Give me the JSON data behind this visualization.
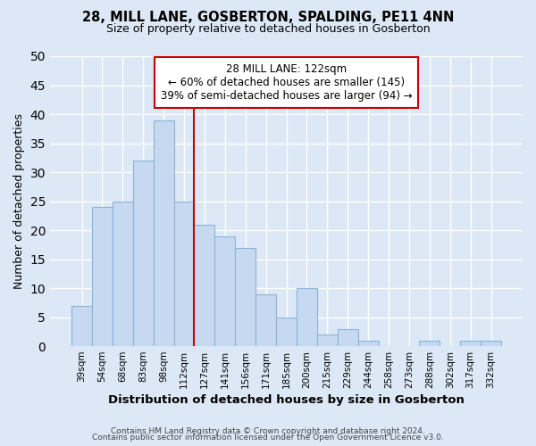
{
  "title": "28, MILL LANE, GOSBERTON, SPALDING, PE11 4NN",
  "subtitle": "Size of property relative to detached houses in Gosberton",
  "xlabel": "Distribution of detached houses by size in Gosberton",
  "ylabel": "Number of detached properties",
  "footer_line1": "Contains HM Land Registry data © Crown copyright and database right 2024.",
  "footer_line2": "Contains public sector information licensed under the Open Government Licence v3.0.",
  "bar_labels": [
    "39sqm",
    "54sqm",
    "68sqm",
    "83sqm",
    "98sqm",
    "112sqm",
    "127sqm",
    "141sqm",
    "156sqm",
    "171sqm",
    "185sqm",
    "200sqm",
    "215sqm",
    "229sqm",
    "244sqm",
    "258sqm",
    "273sqm",
    "288sqm",
    "302sqm",
    "317sqm",
    "332sqm"
  ],
  "bar_values": [
    7,
    24,
    25,
    32,
    39,
    25,
    21,
    19,
    17,
    9,
    5,
    10,
    2,
    3,
    1,
    0,
    0,
    1,
    0,
    1,
    1
  ],
  "bar_color": "#c6d9f0",
  "bar_edge_color": "#8ab4d8",
  "annotation_title": "28 MILL LANE: 122sqm",
  "annotation_line1": "← 60% of detached houses are smaller (145)",
  "annotation_line2": "39% of semi-detached houses are larger (94) →",
  "vline_color": "#cc0000",
  "annotation_box_color": "#ffffff",
  "annotation_box_edge_color": "#cc0000",
  "ylim": [
    0,
    50
  ],
  "yticks": [
    0,
    5,
    10,
    15,
    20,
    25,
    30,
    35,
    40,
    45,
    50
  ],
  "bg_color": "#dce8f5",
  "plot_bg_color": "#dce8f5",
  "grid_color": "#ffffff"
}
